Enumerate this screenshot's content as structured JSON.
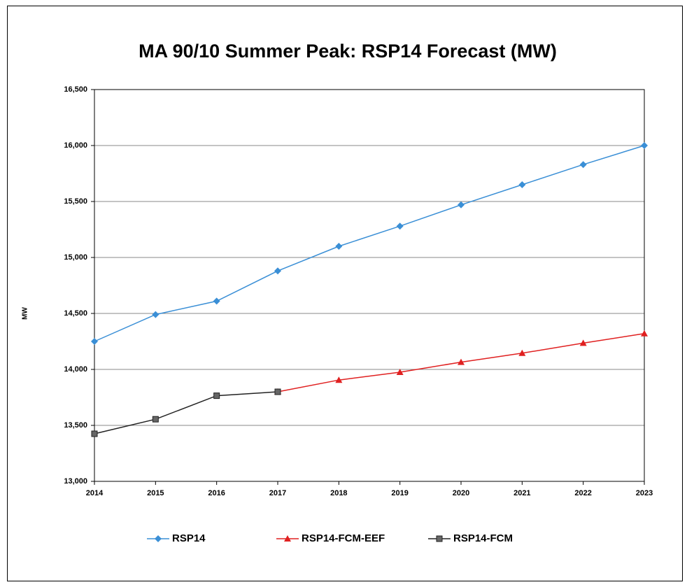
{
  "chart_data": {
    "type": "line",
    "title": "MA 90/10 Summer Peak: RSP14 Forecast (MW)",
    "y_label": "MW",
    "x": [
      2014,
      2015,
      2016,
      2017,
      2018,
      2019,
      2020,
      2021,
      2022,
      2023
    ],
    "xlim": [
      2014,
      2023
    ],
    "xticks": [
      2014,
      2015,
      2016,
      2017,
      2018,
      2019,
      2020,
      2021,
      2022,
      2023
    ],
    "ylim": [
      13000,
      16500
    ],
    "yticks": [
      {
        "value": 13000,
        "label": "13,000"
      },
      {
        "value": 13500,
        "label": "13,500"
      },
      {
        "value": 14000,
        "label": "14,000"
      },
      {
        "value": 14500,
        "label": "14,500"
      },
      {
        "value": 15000,
        "label": "15,000"
      },
      {
        "value": 15500,
        "label": "15,500"
      },
      {
        "value": 16000,
        "label": "16,000"
      },
      {
        "value": 16500,
        "label": "16,500"
      }
    ],
    "grid": true,
    "legend": "bottom",
    "series": [
      {
        "name": "RSP14",
        "color": "#3a8fd6",
        "marker": "diamond",
        "values": [
          14250,
          14490,
          14610,
          14880,
          15100,
          15280,
          15470,
          15650,
          15830,
          16000
        ]
      },
      {
        "name": "RSP14-FCM-EEF",
        "color": "#e02020",
        "marker": "triangle",
        "values": [
          null,
          null,
          null,
          13800,
          13905,
          13975,
          14065,
          14145,
          14235,
          14320
        ]
      },
      {
        "name": "RSP14-FCM",
        "color": "#222222",
        "marker": "square",
        "values": [
          13425,
          13555,
          13765,
          13800,
          null,
          null,
          null,
          null,
          null,
          null
        ]
      }
    ]
  }
}
